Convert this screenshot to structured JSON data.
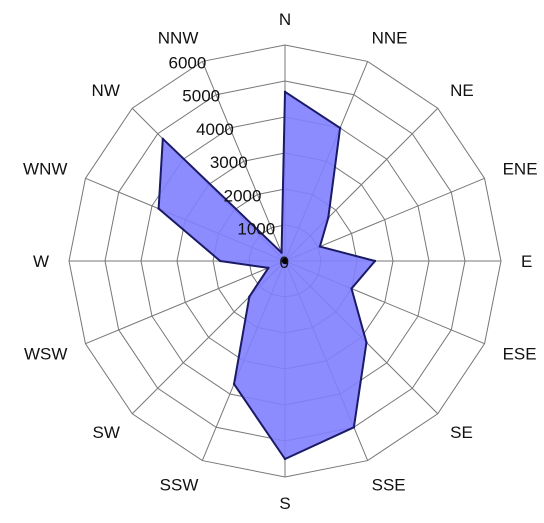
{
  "chart_data": {
    "type": "radar",
    "title": "",
    "directions": [
      "N",
      "NNE",
      "NE",
      "ENE",
      "E",
      "ESE",
      "SE",
      "SSE",
      "S",
      "SSW",
      "SW",
      "WSW",
      "W",
      "WNW",
      "NW",
      "NNW"
    ],
    "radial_ticks": [
      "0",
      "1000",
      "2000",
      "3000",
      "4000",
      "5000",
      "6000"
    ],
    "rlim": [
      0,
      6000
    ],
    "grid": true,
    "series": [
      {
        "values": [
          4700,
          4000,
          1700,
          1050,
          2500,
          2000,
          3200,
          5000,
          5500,
          3700,
          1400,
          500,
          1800,
          3800,
          4800,
          250
        ]
      }
    ],
    "colors": {
      "fill": "#8080ff",
      "stroke": "#1a1a66",
      "grid": "#777777"
    }
  }
}
